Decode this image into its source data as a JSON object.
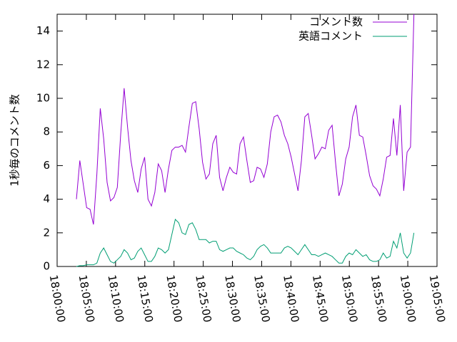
{
  "chart_data": {
    "type": "line",
    "ylabel": "1秒毎のコメント数",
    "x": [
      "18:03:18",
      "18:03:53",
      "18:04:28",
      "18:05:03",
      "18:05:38",
      "18:06:13",
      "18:06:48",
      "18:07:23",
      "18:07:58",
      "18:08:33",
      "18:09:08",
      "18:09:43",
      "18:10:18",
      "18:10:53",
      "18:11:28",
      "18:12:03",
      "18:12:38",
      "18:13:13",
      "18:13:48",
      "18:14:23",
      "18:14:58",
      "18:15:33",
      "18:16:08",
      "18:16:43",
      "18:17:18",
      "18:17:53",
      "18:18:28",
      "18:19:03",
      "18:19:38",
      "18:20:13",
      "18:20:48",
      "18:21:23",
      "18:21:58",
      "18:22:33",
      "18:23:08",
      "18:23:43",
      "18:24:18",
      "18:24:53",
      "18:25:28",
      "18:26:03",
      "18:26:38",
      "18:27:13",
      "18:27:48",
      "18:28:23",
      "18:28:58",
      "18:29:33",
      "18:30:08",
      "18:30:43",
      "18:31:18",
      "18:31:53",
      "18:32:28",
      "18:33:03",
      "18:33:38",
      "18:34:13",
      "18:34:48",
      "18:35:23",
      "18:35:58",
      "18:36:33",
      "18:37:08",
      "18:37:43",
      "18:38:18",
      "18:38:53",
      "18:39:28",
      "18:40:03",
      "18:40:38",
      "18:41:13",
      "18:41:48",
      "18:42:23",
      "18:42:58",
      "18:43:33",
      "18:44:08",
      "18:44:43",
      "18:45:18",
      "18:45:53",
      "18:46:28",
      "18:47:03",
      "18:47:38",
      "18:48:13",
      "18:48:48",
      "18:49:23",
      "18:49:58",
      "18:50:33",
      "18:51:08",
      "18:51:43",
      "18:52:18",
      "18:52:53",
      "18:53:28",
      "18:54:03",
      "18:54:38",
      "18:55:13",
      "18:55:48",
      "18:56:23",
      "18:56:58",
      "18:57:33",
      "18:58:08",
      "18:58:43",
      "18:59:18",
      "18:59:53",
      "19:00:28",
      "19:01:03"
    ],
    "series": [
      {
        "name": "コメント数",
        "color": "#9400d3",
        "values": [
          4.0,
          6.3,
          4.9,
          3.5,
          3.4,
          2.5,
          5.5,
          9.4,
          7.6,
          5.0,
          3.9,
          4.1,
          4.7,
          7.9,
          10.6,
          8.3,
          6.3,
          5.1,
          4.4,
          5.8,
          6.5,
          4.0,
          3.6,
          4.4,
          6.1,
          5.7,
          4.4,
          5.8,
          6.9,
          7.1,
          7.1,
          7.2,
          6.8,
          8.3,
          9.7,
          9.8,
          8.2,
          6.2,
          5.2,
          5.5,
          7.3,
          7.8,
          5.3,
          4.5,
          5.3,
          5.9,
          5.6,
          5.5,
          7.3,
          7.7,
          6.3,
          5.0,
          5.1,
          5.9,
          5.8,
          5.3,
          6.1,
          8.0,
          8.9,
          9.0,
          8.6,
          7.8,
          7.3,
          6.5,
          5.5,
          4.5,
          6.3,
          8.9,
          9.1,
          7.8,
          6.4,
          6.7,
          7.1,
          7.0,
          8.1,
          8.4,
          6.2,
          4.2,
          4.9,
          6.4,
          7.1,
          8.9,
          9.6,
          7.8,
          7.7,
          6.6,
          5.4,
          4.8,
          4.6,
          4.2,
          5.2,
          6.5,
          6.6,
          8.8,
          6.6,
          9.6,
          4.5,
          6.8,
          7.1,
          15.0
        ]
      },
      {
        "name": "英語コメント",
        "color": "#009e73",
        "values": [
          0,
          0.05,
          0.05,
          0.1,
          0.1,
          0.1,
          0.2,
          0.8,
          1.1,
          0.7,
          0.3,
          0.2,
          0.4,
          0.6,
          1.0,
          0.8,
          0.4,
          0.5,
          0.9,
          1.1,
          0.7,
          0.3,
          0.3,
          0.6,
          1.1,
          1.0,
          0.8,
          1.0,
          1.9,
          2.8,
          2.6,
          2.0,
          1.9,
          2.5,
          2.6,
          2.2,
          1.6,
          1.6,
          1.6,
          1.4,
          1.5,
          1.5,
          1.0,
          0.9,
          1.0,
          1.1,
          1.1,
          0.9,
          0.8,
          0.7,
          0.5,
          0.4,
          0.6,
          1.0,
          1.2,
          1.3,
          1.1,
          0.8,
          0.8,
          0.8,
          0.8,
          1.1,
          1.2,
          1.1,
          0.9,
          0.7,
          1.0,
          1.3,
          1.0,
          0.7,
          0.7,
          0.6,
          0.7,
          0.8,
          0.7,
          0.6,
          0.4,
          0.2,
          0.2,
          0.6,
          0.8,
          0.7,
          1.0,
          0.8,
          0.6,
          0.7,
          0.4,
          0.3,
          0.3,
          0.4,
          0.8,
          0.5,
          0.6,
          1.5,
          1.1,
          2.0,
          0.8,
          0.5,
          0.8,
          2.0
        ]
      }
    ],
    "xlim": [
      "18:00:00",
      "19:05:00"
    ],
    "xticks": [
      "18:00:00",
      "18:05:00",
      "18:10:00",
      "18:15:00",
      "18:20:00",
      "18:25:00",
      "18:30:00",
      "18:35:00",
      "18:40:00",
      "18:45:00",
      "18:50:00",
      "18:55:00",
      "19:00:00",
      "19:05:00"
    ],
    "ylim": [
      0,
      15
    ],
    "yticks": [
      0,
      2,
      4,
      6,
      8,
      10,
      12,
      14
    ],
    "legend": "top-right"
  }
}
